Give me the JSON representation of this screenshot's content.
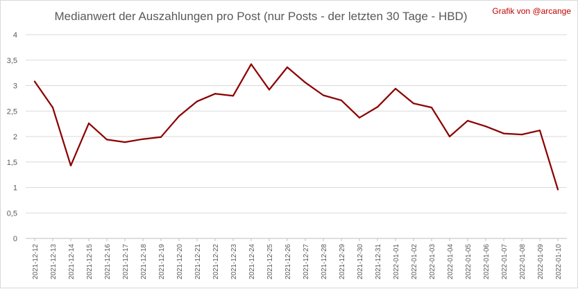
{
  "chart_data": {
    "type": "line",
    "title": "Medianwert der Auszahlungen pro Post (nur Posts - der letzten 30 Tage - HBD)",
    "credit": "Grafik von @arcange",
    "xlabel": "",
    "ylabel": "",
    "ylim": [
      0,
      4
    ],
    "yticks": [
      "0",
      "0,5",
      "1",
      "1,5",
      "2",
      "2,5",
      "3",
      "3,5",
      "4"
    ],
    "ytick_values": [
      0,
      0.5,
      1,
      1.5,
      2,
      2.5,
      3,
      3.5,
      4
    ],
    "grid": true,
    "legend": "none",
    "categories": [
      "2021-12-12",
      "2021-12-13",
      "2021-12-14",
      "2021-12-15",
      "2021-12-16",
      "2021-12-17",
      "2021-12-18",
      "2021-12-19",
      "2021-12-20",
      "2021-12-21",
      "2021-12-22",
      "2021-12-23",
      "2021-12-24",
      "2021-12-25",
      "2021-12-26",
      "2021-12-27",
      "2021-12-28",
      "2021-12-29",
      "2021-12-30",
      "2021-12-31",
      "2022-01-01",
      "2022-01-02",
      "2022-01-03",
      "2022-01-04",
      "2022-01-05",
      "2022-01-06",
      "2022-01-07",
      "2022-01-08",
      "2022-01-09",
      "2022-01-10"
    ],
    "series": [
      {
        "color": "#8b0000",
        "values": [
          3.08,
          2.57,
          1.43,
          2.26,
          1.94,
          1.89,
          1.95,
          1.99,
          2.4,
          2.69,
          2.84,
          2.8,
          3.42,
          2.92,
          3.36,
          3.06,
          2.81,
          2.71,
          2.37,
          2.58,
          2.94,
          2.65,
          2.57,
          2.0,
          2.31,
          2.2,
          2.06,
          2.04,
          2.12,
          0.96
        ]
      }
    ]
  }
}
